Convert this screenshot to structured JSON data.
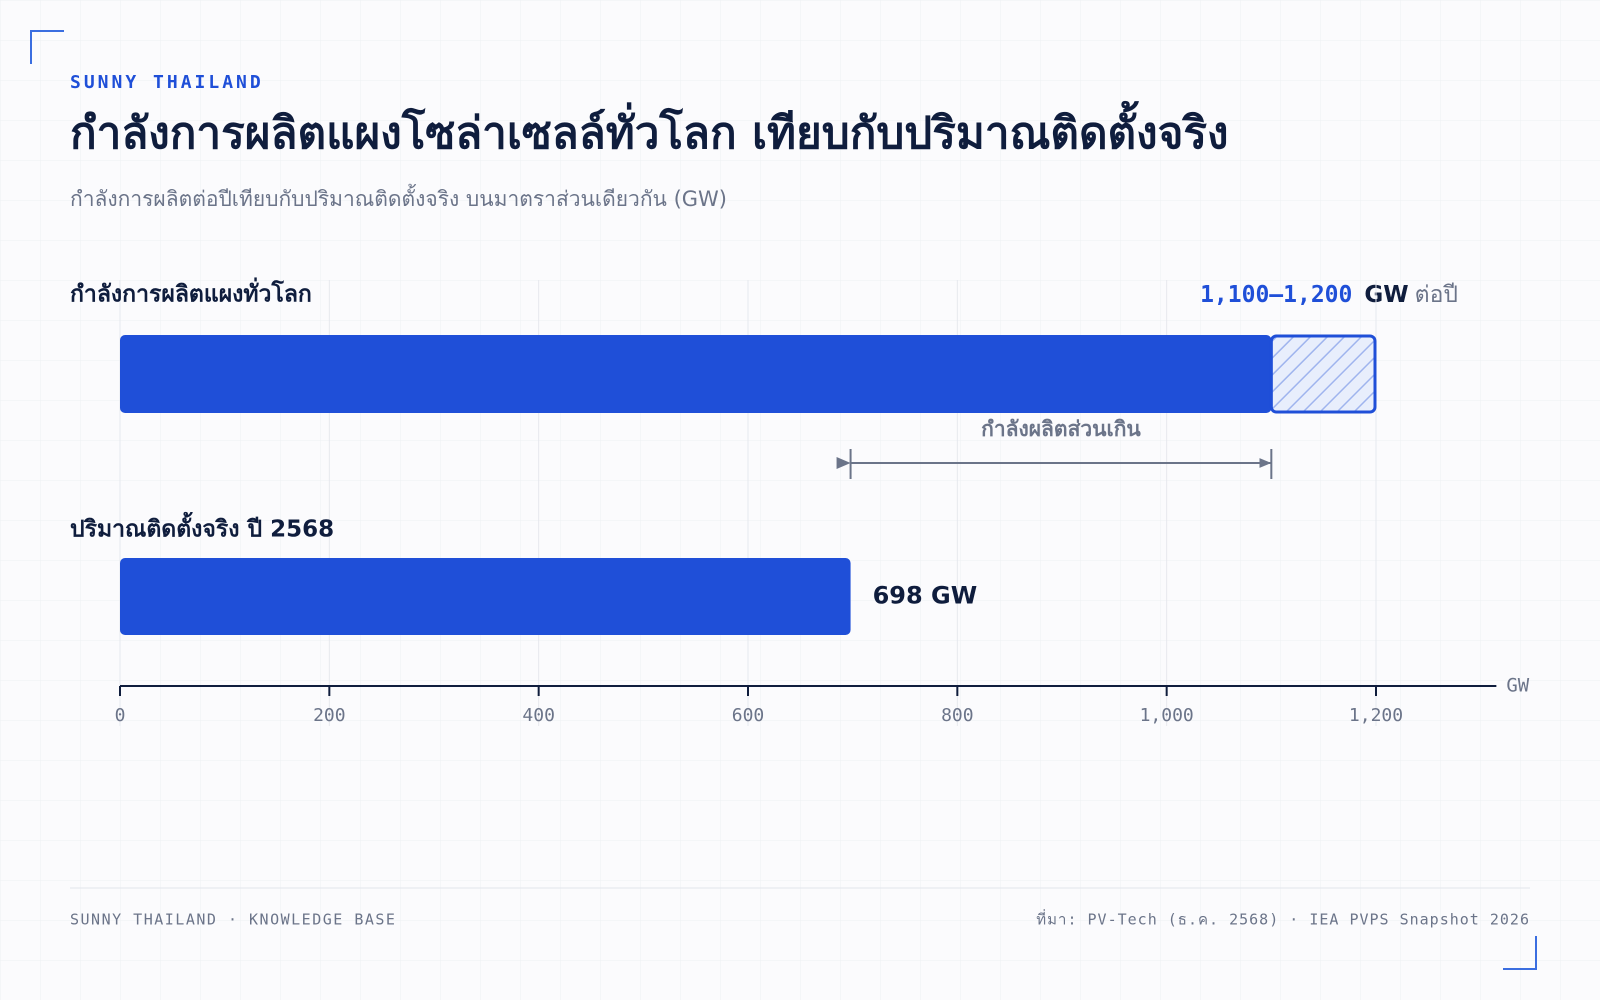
{
  "chart_data": {
    "type": "bar",
    "eyebrow": "SUNNY THAILAND",
    "title": "กำลังการผลิตแผงโซล่าเซลล์ทั่วโลก เทียบกับปริมาณติดตั้งจริง",
    "subtitle": "กำลังการผลิตต่อปีเทียบกับปริมาณติดตั้งจริง บนมาตราส่วนเดียวกัน (GW)",
    "categories": [
      "กำลังการผลิตแผงทั่วโลก",
      "ปริมาณติดตั้งจริง ปี 2568"
    ],
    "values": [
      1100,
      698
    ],
    "upper_values": [
      1200,
      null
    ],
    "value_labels": [
      "1,100–1,200",
      "698 GW"
    ],
    "value_unit": "GW",
    "value_suffix": "ต่อปี",
    "color": "#1f4fd8",
    "range_color": "#c9d5f6",
    "annotation": {
      "text": "กำลังผลิตส่วนเกิน",
      "from": 698,
      "to": 1100
    },
    "xlim": [
      0,
      1315
    ],
    "xticks": [
      0,
      200,
      400,
      600,
      800,
      {
        "value": 1000,
        "label": "1,000"
      },
      {
        "value": 1200,
        "label": "1,200"
      }
    ],
    "x_label": "GW",
    "grid": true,
    "footer_left": "SUNNY THAILAND · KNOWLEDGE BASE",
    "footer_right": "ที่มา: PV-Tech (ธ.ค. 2568) · IEA PVPS Snapshot 2026"
  }
}
